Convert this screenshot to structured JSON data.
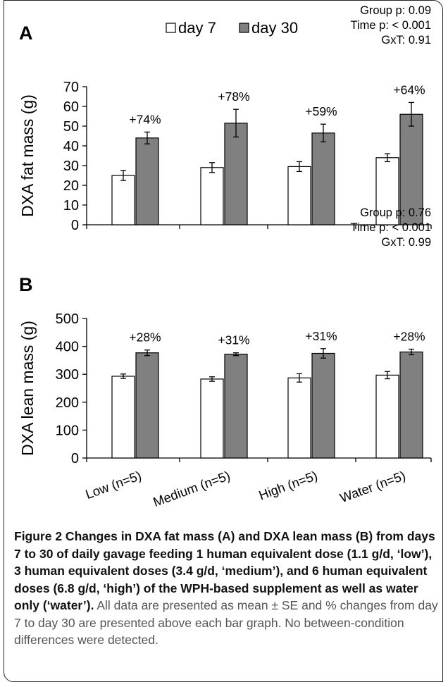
{
  "chart_data": [
    {
      "type": "bar",
      "panel_label": "A",
      "ylabel": "DXA fat mass (g)",
      "ylim": [
        0,
        70
      ],
      "yticks": [
        0,
        10,
        20,
        30,
        40,
        50,
        60,
        70
      ],
      "categories": [
        "Low (n=5)",
        "Medium (n=5)",
        "High (n=5)",
        "Water (n=5)"
      ],
      "series": [
        {
          "name": "day 7",
          "color": "#ffffff",
          "values": [
            25,
            29,
            29.5,
            34
          ],
          "errors": [
            2.5,
            2.5,
            2.5,
            2
          ]
        },
        {
          "name": "day 30",
          "color": "#808080",
          "values": [
            44,
            51.5,
            46.5,
            56
          ],
          "errors": [
            3,
            7,
            4.5,
            6
          ]
        }
      ],
      "annotations": [
        "+74%",
        "+78%",
        "+59%",
        "+64%"
      ],
      "stats": [
        "Group p: 0.09",
        "Time p: < 0.001",
        "GxT: 0.91"
      ],
      "legend_position": "top"
    },
    {
      "type": "bar",
      "panel_label": "B",
      "ylabel": "DXA lean mass (g)",
      "ylim": [
        0,
        500
      ],
      "yticks": [
        0,
        100,
        200,
        300,
        400,
        500
      ],
      "categories": [
        "Low (n=5)",
        "Medium (n=5)",
        "High (n=5)",
        "Water (n=5)"
      ],
      "series": [
        {
          "name": "day 7",
          "color": "#ffffff",
          "values": [
            293,
            283,
            287,
            297
          ],
          "errors": [
            8,
            8,
            15,
            13
          ]
        },
        {
          "name": "day 30",
          "color": "#808080",
          "values": [
            377,
            372,
            375,
            380
          ],
          "errors": [
            10,
            5,
            17,
            10
          ]
        }
      ],
      "annotations": [
        "+28%",
        "+31%",
        "+31%",
        "+28%"
      ],
      "stats": [
        "Group p: 0.76",
        "Time p: < 0.001",
        "GxT: 0.99"
      ]
    }
  ],
  "caption": {
    "bold": "Figure 2 Changes in DXA fat mass (A) and DXA lean mass (B) from days 7 to 30 of daily gavage feeding 1 human equivalent dose (1.1 g/d, ‘low’), 3 human equivalent doses (3.4 g/d, ‘medium’), and 6 human equivalent doses (6.8 g/d, ‘high’) of the WPH-based supplement as well as water only (‘water’).",
    "normal": " All data are presented as mean ± SE and % changes from day 7 to day 30 are presented above each bar graph. No between-condition differences were detected."
  }
}
